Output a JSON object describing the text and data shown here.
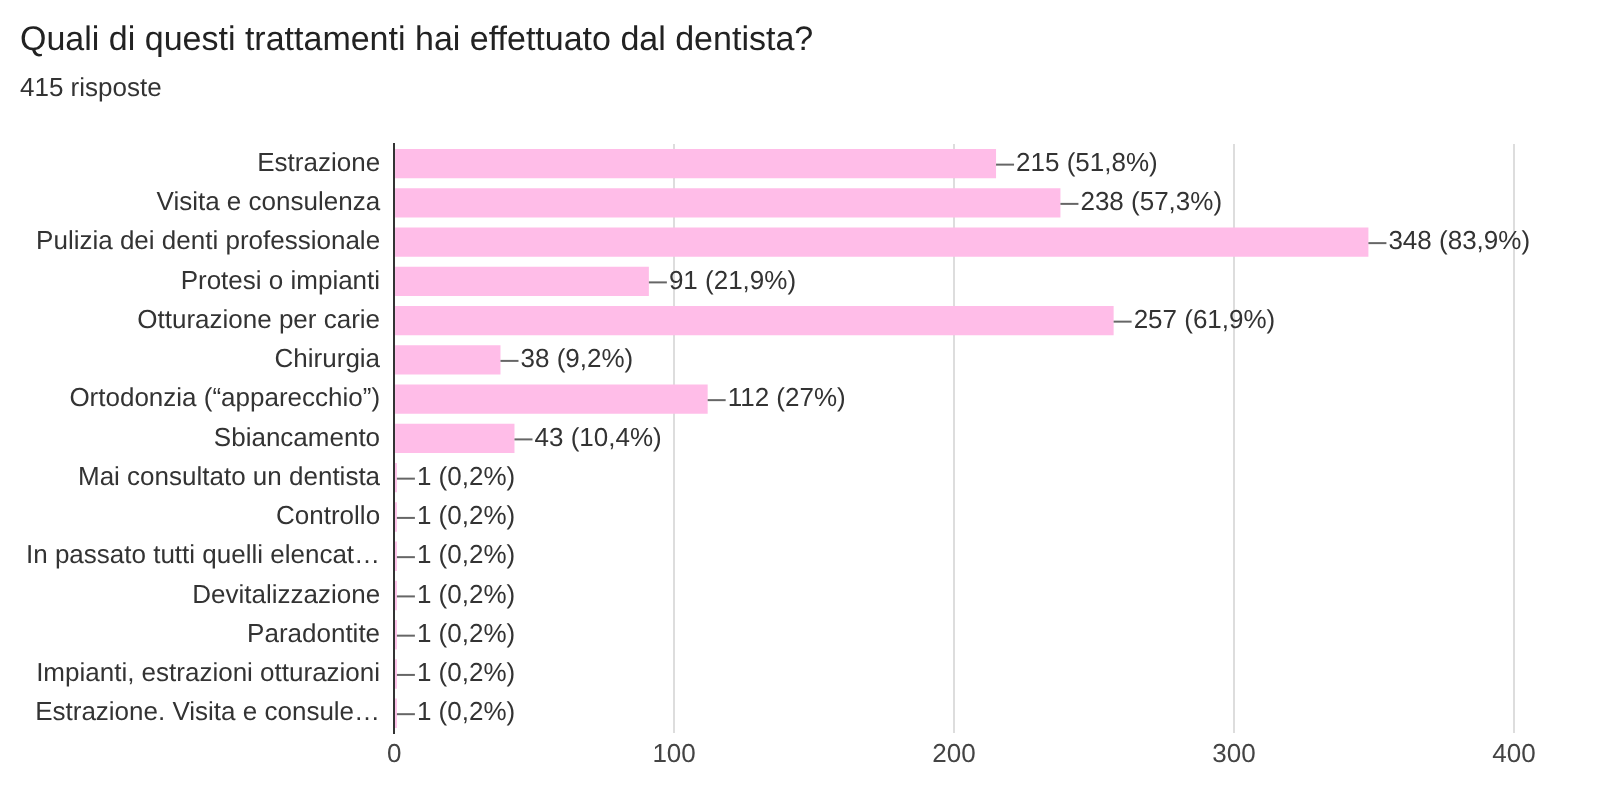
{
  "chart_data": {
    "type": "bar",
    "orientation": "horizontal",
    "title": "Quali di questi trattamenti hai effettuato dal dentista?",
    "subtitle": "415 risposte",
    "categories": [
      "Estrazione",
      "Visita e consulenza",
      "Pulizia dei denti professionale",
      "Protesi o impianti",
      "Otturazione per carie",
      "Chirurgia",
      "Ortodonzia (“apparecchio”)",
      "Sbiancamento",
      "Mai consultato un dentista",
      "Controllo",
      "In passato tutti quelli elencat…",
      "Devitalizzazione",
      "Paradontite",
      "Impianti, estrazioni otturazioni",
      "Estrazione. Visita e consule…"
    ],
    "values": [
      215,
      238,
      348,
      91,
      257,
      38,
      112,
      43,
      1,
      1,
      1,
      1,
      1,
      1,
      1
    ],
    "value_labels": [
      "215 (51,8%)",
      "238 (57,3%)",
      "348 (83,9%)",
      "91 (21,9%)",
      "257 (61,9%)",
      "38 (9,2%)",
      "112 (27%)",
      "43 (10,4%)",
      "1 (0,2%)",
      "1 (0,2%)",
      "1 (0,2%)",
      "1 (0,2%)",
      "1 (0,2%)",
      "1 (0,2%)",
      "1 (0,2%)"
    ],
    "color": "#ffbde8",
    "xlim": [
      0,
      400
    ],
    "xticks": [
      0,
      100,
      200,
      300,
      400
    ],
    "grid": "x",
    "legend": false
  }
}
